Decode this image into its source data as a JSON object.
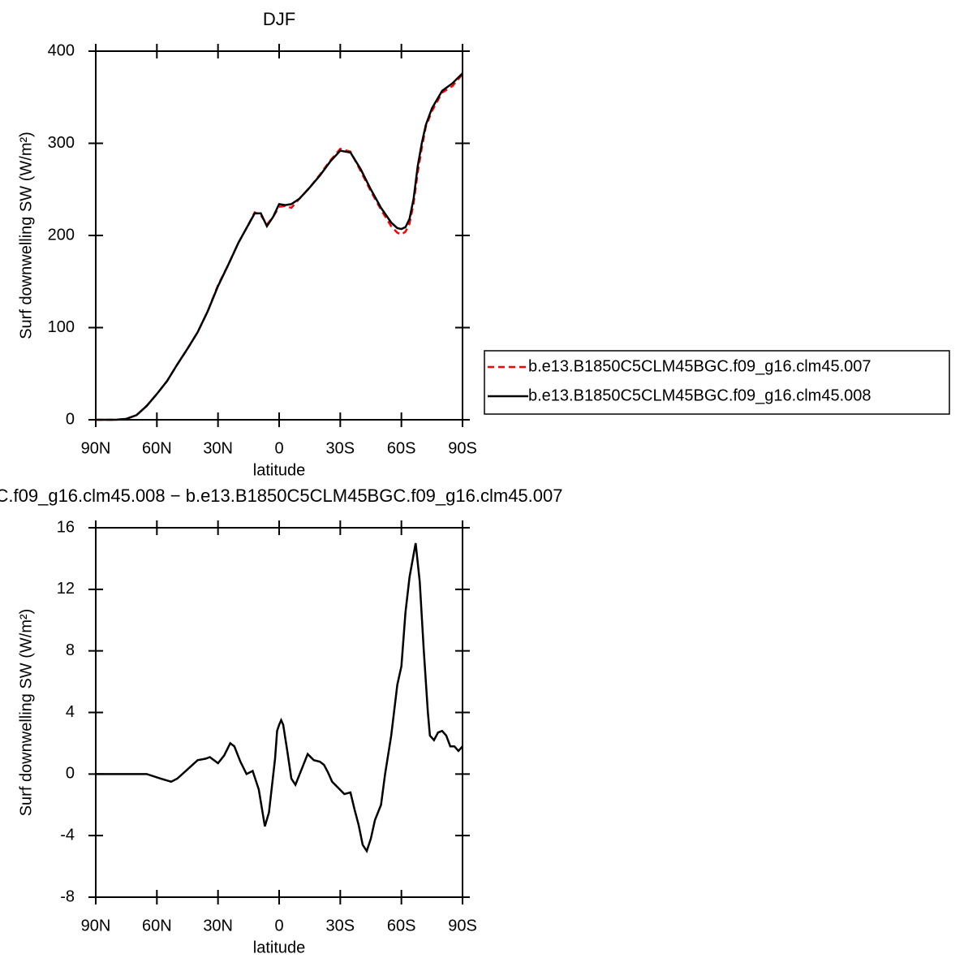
{
  "chart_data": [
    {
      "type": "line",
      "title": "DJF",
      "ylabel": "Surf downwelling SW (W/m²)",
      "xlabel": "latitude",
      "x": [
        90,
        85,
        80,
        75,
        70,
        65,
        60,
        55,
        50,
        45,
        40,
        35,
        30,
        25,
        20,
        15,
        12,
        9,
        6,
        3,
        0,
        -3,
        -6,
        -10,
        -15,
        -20,
        -25,
        -30,
        -35,
        -40,
        -45,
        -50,
        -55,
        -58,
        -60,
        -62,
        -64,
        -66,
        -68,
        -70,
        -72,
        -75,
        -80,
        -85,
        -90
      ],
      "xlim": [
        90,
        -90
      ],
      "xticks": [
        {
          "value": 90,
          "label": "90N"
        },
        {
          "value": 60,
          "label": "60N"
        },
        {
          "value": 30,
          "label": "30N"
        },
        0,
        {
          "value": -30,
          "label": "30S"
        },
        {
          "value": -60,
          "label": "60S"
        },
        {
          "value": -90,
          "label": "90S"
        }
      ],
      "ylim": [
        0,
        400
      ],
      "yticks": [
        0,
        100,
        200,
        300,
        400
      ],
      "legend": "outside-right",
      "series": [
        {
          "name": "b.e13.B1850C5CLM45BGC.f09_g16.clm45.007",
          "color": "#ff0000",
          "linestyle": "dashed",
          "values": [
            0,
            0,
            0,
            1,
            5,
            15,
            28,
            42,
            60,
            77,
            95,
            118,
            146,
            168,
            192,
            212,
            225,
            222,
            212,
            220,
            231,
            232,
            230,
            240,
            252,
            266,
            281,
            294,
            291,
            270,
            248,
            228,
            210,
            203,
            201,
            204,
            213,
            235,
            268,
            295,
            318,
            335,
            355,
            362,
            375
          ]
        },
        {
          "name": "b.e13.B1850C5CLM45BGC.f09_g16.clm45.008",
          "color": "#000000",
          "linestyle": "solid",
          "values": [
            0,
            0,
            0,
            1,
            5,
            15,
            28,
            42,
            60,
            77,
            95,
            118,
            145,
            168,
            192,
            212,
            224,
            224,
            210,
            220,
            234,
            233,
            234,
            240,
            252,
            265,
            280,
            292,
            290,
            272,
            250,
            230,
            214,
            208,
            207,
            209,
            218,
            240,
            275,
            300,
            320,
            338,
            357,
            365,
            376
          ]
        }
      ]
    },
    {
      "type": "line",
      "title": "C.f09_g16.clm45.008 − b.e13.B1850C5CLM45BGC.f09_g16.clm45.007",
      "ylabel": "Surf downwelling SW (W/m²)",
      "xlabel": "latitude",
      "x": [
        90,
        80,
        70,
        65,
        58,
        53,
        50,
        45,
        40,
        36,
        34,
        30,
        27,
        24,
        22,
        19,
        16,
        13,
        10,
        7,
        5,
        2,
        1,
        0,
        -1,
        -2,
        -4,
        -6,
        -8,
        -11,
        -14,
        -17,
        -20,
        -22,
        -24,
        -26,
        -29,
        -32,
        -35,
        -37,
        -39,
        -41,
        -43,
        -45,
        -47,
        -50,
        -52,
        -55,
        -58,
        -60,
        -62,
        -64,
        -67,
        -69,
        -71,
        -73,
        -74,
        -76,
        -78,
        -80,
        -82,
        -84,
        -86,
        -88,
        -90
      ],
      "xlim": [
        90,
        -90
      ],
      "xticks": [
        {
          "value": 90,
          "label": "90N"
        },
        {
          "value": 60,
          "label": "60N"
        },
        {
          "value": 30,
          "label": "30N"
        },
        0,
        {
          "value": -30,
          "label": "30S"
        },
        {
          "value": -60,
          "label": "60S"
        },
        {
          "value": -90,
          "label": "90S"
        }
      ],
      "ylim": [
        -8,
        16
      ],
      "yticks": [
        -8,
        -4,
        0,
        4,
        8,
        12,
        16
      ],
      "series": [
        {
          "color": "#000000",
          "linestyle": "solid",
          "values": [
            0,
            0,
            0,
            0,
            -0.3,
            -0.5,
            -0.3,
            0.3,
            0.9,
            1.0,
            1.1,
            0.7,
            1.2,
            2.0,
            1.8,
            0.8,
            0,
            0.2,
            -1,
            -3.4,
            -2.5,
            1.0,
            2.8,
            3.2,
            3.5,
            3.2,
            1.5,
            -0.3,
            -0.7,
            0.3,
            1.3,
            0.9,
            0.8,
            0.6,
            0.1,
            -0.5,
            -0.9,
            -1.3,
            -1.2,
            -2.3,
            -3.3,
            -4.6,
            -5.0,
            -4.2,
            -3.0,
            -2.0,
            0,
            2.5,
            5.8,
            7.0,
            10.5,
            12.8,
            15.0,
            12.5,
            8,
            4,
            2.5,
            2.2,
            2.7,
            2.8,
            2.5,
            1.8,
            1.8,
            1.5,
            1.8
          ]
        }
      ]
    }
  ]
}
